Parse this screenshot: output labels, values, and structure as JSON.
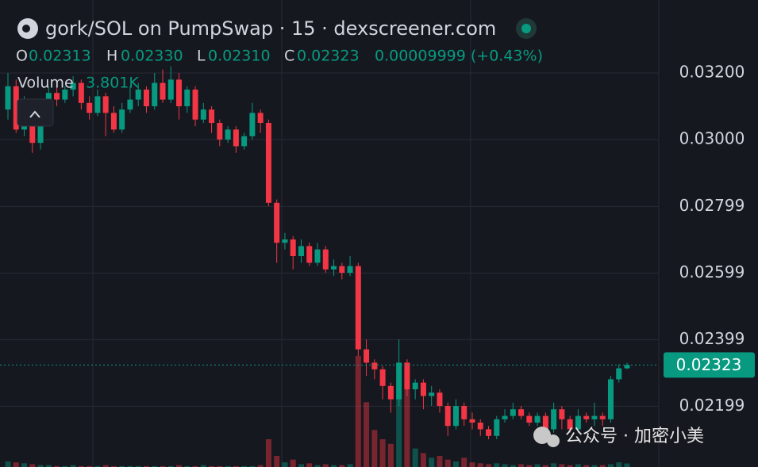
{
  "chart_data": {
    "type": "candlestick",
    "title": "gork/SOL on PumpSwap · 15 · dexscreener.com",
    "header": {
      "labels": [
        "O",
        "H",
        "L",
        "C"
      ],
      "values": [
        "0.02313",
        "0.02330",
        "0.02310",
        "0.02323"
      ],
      "change": "0.00009999 (+0.43%)"
    },
    "volume_title": "Volume",
    "volume_current": "3.801K",
    "open": [
      0.0309,
      0.0316,
      0.0303,
      0.0311,
      0.0299,
      0.0305,
      0.0314,
      0.0312,
      0.0315,
      0.0317,
      0.0311,
      0.0308,
      0.0313,
      0.0308,
      0.0303,
      0.0309,
      0.0312,
      0.0315,
      0.031,
      0.0317,
      0.0312,
      0.0318,
      0.031,
      0.0315,
      0.0306,
      0.0309,
      0.0305,
      0.03,
      0.0303,
      0.0298,
      0.0301,
      0.0308,
      0.0305,
      0.0281,
      0.0269,
      0.027,
      0.0265,
      0.0268,
      0.0263,
      0.0267,
      0.0261,
      0.0262,
      0.026,
      0.0262,
      0.0237,
      0.0233,
      0.0231,
      0.0226,
      0.0222,
      0.0233,
      0.0225,
      0.0227,
      0.0223,
      0.0224,
      0.022,
      0.0214,
      0.022,
      0.0216,
      0.0215,
      0.0213,
      0.0211,
      0.0216,
      0.0217,
      0.0219,
      0.0217,
      0.0215,
      0.0217,
      0.0213,
      0.0219,
      0.0216,
      0.0213,
      0.0217,
      0.0216,
      0.0217,
      0.0216,
      0.0228,
      0.02313
    ],
    "high": [
      0.032,
      0.0318,
      0.0313,
      0.0312,
      0.0307,
      0.0316,
      0.0317,
      0.0316,
      0.0319,
      0.0318,
      0.0313,
      0.0315,
      0.0314,
      0.031,
      0.0311,
      0.0316,
      0.0317,
      0.0316,
      0.032,
      0.0321,
      0.0322,
      0.032,
      0.0316,
      0.0316,
      0.0311,
      0.031,
      0.0306,
      0.0304,
      0.0304,
      0.0302,
      0.0311,
      0.0309,
      0.0306,
      0.0282,
      0.0272,
      0.0271,
      0.027,
      0.0269,
      0.0269,
      0.0268,
      0.0264,
      0.0263,
      0.0265,
      0.0263,
      0.024,
      0.0234,
      0.0232,
      0.0227,
      0.024,
      0.0234,
      0.0228,
      0.0228,
      0.0226,
      0.0225,
      0.0221,
      0.0222,
      0.0221,
      0.0218,
      0.0216,
      0.0214,
      0.0217,
      0.0219,
      0.0221,
      0.022,
      0.0218,
      0.0218,
      0.0218,
      0.0221,
      0.022,
      0.0217,
      0.0219,
      0.0218,
      0.0221,
      0.0218,
      0.0229,
      0.02325,
      0.0233
    ],
    "low": [
      0.0306,
      0.0302,
      0.0301,
      0.0296,
      0.0297,
      0.0304,
      0.031,
      0.0311,
      0.0313,
      0.0309,
      0.0306,
      0.0307,
      0.0301,
      0.0302,
      0.0302,
      0.0308,
      0.031,
      0.0308,
      0.0309,
      0.0311,
      0.0311,
      0.0306,
      0.0308,
      0.0304,
      0.0305,
      0.0302,
      0.0298,
      0.0299,
      0.0296,
      0.0297,
      0.03,
      0.0302,
      0.028,
      0.0263,
      0.0267,
      0.0261,
      0.0263,
      0.0262,
      0.0262,
      0.026,
      0.0259,
      0.0258,
      0.0259,
      0.0235,
      0.0229,
      0.0228,
      0.0222,
      0.0218,
      0.022,
      0.0223,
      0.0222,
      0.0219,
      0.022,
      0.0218,
      0.0211,
      0.0213,
      0.0214,
      0.0213,
      0.0211,
      0.021,
      0.021,
      0.0215,
      0.0216,
      0.0216,
      0.0214,
      0.0214,
      0.0212,
      0.0212,
      0.0213,
      0.0212,
      0.0212,
      0.0215,
      0.0214,
      0.0214,
      0.0215,
      0.0227,
      0.0231
    ],
    "close": [
      0.0316,
      0.0303,
      0.0311,
      0.0299,
      0.0305,
      0.0314,
      0.0312,
      0.0315,
      0.0317,
      0.0311,
      0.0308,
      0.0313,
      0.0308,
      0.0303,
      0.0309,
      0.0312,
      0.0315,
      0.031,
      0.0317,
      0.0312,
      0.0318,
      0.031,
      0.0315,
      0.0306,
      0.0309,
      0.0305,
      0.03,
      0.0303,
      0.0298,
      0.0301,
      0.0308,
      0.0305,
      0.0281,
      0.0269,
      0.027,
      0.0265,
      0.0268,
      0.0263,
      0.0267,
      0.0261,
      0.0262,
      0.026,
      0.0262,
      0.0237,
      0.0233,
      0.0231,
      0.0226,
      0.0222,
      0.0233,
      0.0225,
      0.0227,
      0.0223,
      0.0224,
      0.022,
      0.0214,
      0.022,
      0.0216,
      0.0215,
      0.0213,
      0.0211,
      0.0216,
      0.0217,
      0.0219,
      0.0217,
      0.0215,
      0.0217,
      0.0213,
      0.0219,
      0.0216,
      0.0213,
      0.0217,
      0.0216,
      0.0217,
      0.0216,
      0.0228,
      0.02313,
      0.02323
    ],
    "volume": [
      6000,
      5000,
      4000,
      3000,
      2000,
      2000,
      1000,
      1000,
      2000,
      1000,
      1000,
      1000,
      2000,
      1000,
      1000,
      1000,
      1000,
      1000,
      1000,
      1000,
      1000,
      2000,
      1000,
      1000,
      2000,
      1000,
      1000,
      1000,
      1000,
      1000,
      1000,
      2000,
      30000,
      12000,
      5000,
      8000,
      3000,
      4000,
      2000,
      3000,
      2000,
      2000,
      3000,
      120000,
      70000,
      40000,
      30000,
      25000,
      80000,
      90000,
      20000,
      15000,
      10000,
      12000,
      8000,
      6000,
      10000,
      5000,
      4000,
      3000,
      4000,
      3000,
      2000,
      3000,
      2000,
      3000,
      2000,
      4000,
      3000,
      2000,
      3000,
      2000,
      2000,
      2000,
      3000,
      5000,
      3801
    ],
    "up_color": "#089981",
    "down_color": "#f23645",
    "ylim": [
      0.020167,
      0.03419
    ],
    "yticks": [
      {
        "value": 0.032,
        "label": "0.03200"
      },
      {
        "value": 0.03,
        "label": "0.03000"
      },
      {
        "value": 0.02799,
        "label": "0.02799"
      },
      {
        "value": 0.02599,
        "label": "0.02599"
      },
      {
        "value": 0.02399,
        "label": "0.02399"
      },
      {
        "value": 0.02199,
        "label": "0.02199"
      }
    ],
    "last_price": {
      "value": 0.02323,
      "label": "0.02323"
    },
    "grid": true,
    "watermark": "公众号 · 加密小美"
  }
}
